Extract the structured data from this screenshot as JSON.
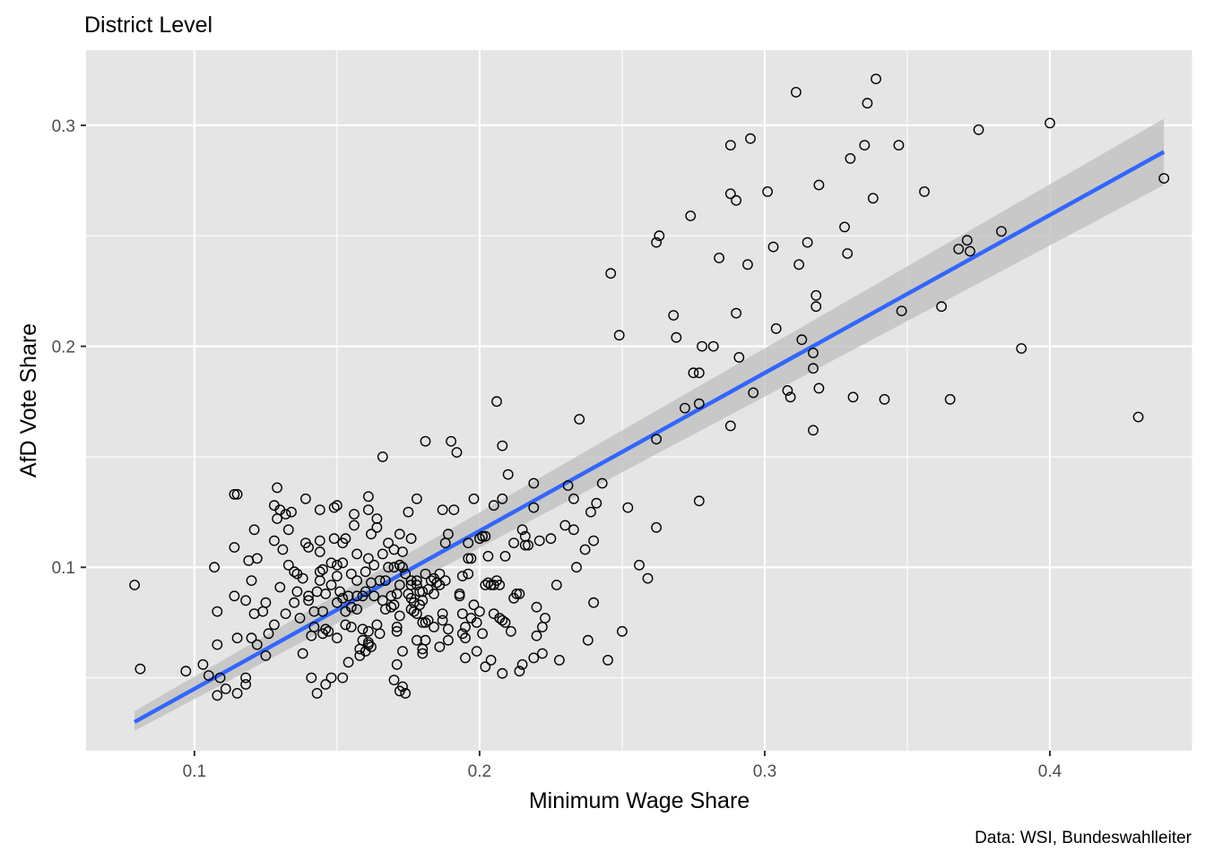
{
  "chart_data": {
    "type": "scatter",
    "title": "District Level",
    "xlabel": "Minimum Wage Share",
    "ylabel": "AfD Vote Share",
    "caption": "Data: WSI, Bundeswahlleiter",
    "xlim": [
      0.062,
      0.45
    ],
    "ylim": [
      0.017,
      0.334
    ],
    "x_ticks": [
      0.1,
      0.2,
      0.3,
      0.4
    ],
    "y_ticks": [
      0.1,
      0.2,
      0.3
    ],
    "x_tick_labels": [
      "0.1",
      "0.2",
      "0.3",
      "0.4"
    ],
    "y_tick_labels": [
      "0.1",
      "0.2",
      "0.3"
    ],
    "grid": true,
    "colors": {
      "panel_background": "#e5e5e5",
      "grid": "#ffffff",
      "fit_line": "#3366ff",
      "confidence_band": "#bebebe",
      "point_stroke": "#000000"
    },
    "fit_line": {
      "x": [
        0.079,
        0.44
      ],
      "y": [
        0.03,
        0.288
      ],
      "ci_lower": [
        0.026,
        0.273
      ],
      "ci_upper": [
        0.035,
        0.303
      ]
    },
    "points": [
      [
        0.079,
        0.092
      ],
      [
        0.081,
        0.054
      ],
      [
        0.097,
        0.053
      ],
      [
        0.103,
        0.056
      ],
      [
        0.105,
        0.051
      ],
      [
        0.108,
        0.042
      ],
      [
        0.108,
        0.08
      ],
      [
        0.108,
        0.065
      ],
      [
        0.107,
        0.1
      ],
      [
        0.109,
        0.05
      ],
      [
        0.111,
        0.045
      ],
      [
        0.114,
        0.133
      ],
      [
        0.115,
        0.133
      ],
      [
        0.114,
        0.109
      ],
      [
        0.114,
        0.087
      ],
      [
        0.115,
        0.068
      ],
      [
        0.115,
        0.043
      ],
      [
        0.118,
        0.05
      ],
      [
        0.118,
        0.047
      ],
      [
        0.118,
        0.085
      ],
      [
        0.119,
        0.103
      ],
      [
        0.12,
        0.094
      ],
      [
        0.12,
        0.068
      ],
      [
        0.121,
        0.117
      ],
      [
        0.121,
        0.079
      ],
      [
        0.122,
        0.104
      ],
      [
        0.122,
        0.065
      ],
      [
        0.124,
        0.08
      ],
      [
        0.125,
        0.084
      ],
      [
        0.125,
        0.06
      ],
      [
        0.126,
        0.07
      ],
      [
        0.128,
        0.128
      ],
      [
        0.128,
        0.112
      ],
      [
        0.128,
        0.074
      ],
      [
        0.129,
        0.136
      ],
      [
        0.129,
        0.122
      ],
      [
        0.13,
        0.126
      ],
      [
        0.13,
        0.091
      ],
      [
        0.131,
        0.108
      ],
      [
        0.132,
        0.124
      ],
      [
        0.132,
        0.079
      ],
      [
        0.133,
        0.117
      ],
      [
        0.133,
        0.101
      ],
      [
        0.134,
        0.125
      ],
      [
        0.135,
        0.098
      ],
      [
        0.135,
        0.084
      ],
      [
        0.136,
        0.089
      ],
      [
        0.136,
        0.097
      ],
      [
        0.137,
        0.077
      ],
      [
        0.138,
        0.061
      ],
      [
        0.138,
        0.095
      ],
      [
        0.139,
        0.111
      ],
      [
        0.139,
        0.131
      ],
      [
        0.14,
        0.085
      ],
      [
        0.14,
        0.087
      ],
      [
        0.14,
        0.109
      ],
      [
        0.141,
        0.069
      ],
      [
        0.141,
        0.05
      ],
      [
        0.142,
        0.08
      ],
      [
        0.142,
        0.073
      ],
      [
        0.143,
        0.043
      ],
      [
        0.143,
        0.089
      ],
      [
        0.144,
        0.126
      ],
      [
        0.144,
        0.094
      ],
      [
        0.144,
        0.098
      ],
      [
        0.144,
        0.107
      ],
      [
        0.144,
        0.112
      ],
      [
        0.145,
        0.099
      ],
      [
        0.145,
        0.07
      ],
      [
        0.145,
        0.08
      ],
      [
        0.146,
        0.088
      ],
      [
        0.146,
        0.047
      ],
      [
        0.146,
        0.072
      ],
      [
        0.147,
        0.071
      ],
      [
        0.148,
        0.05
      ],
      [
        0.148,
        0.102
      ],
      [
        0.148,
        0.092
      ],
      [
        0.149,
        0.127
      ],
      [
        0.149,
        0.113
      ],
      [
        0.15,
        0.128
      ],
      [
        0.15,
        0.101
      ],
      [
        0.15,
        0.096
      ],
      [
        0.15,
        0.084
      ],
      [
        0.15,
        0.068
      ],
      [
        0.151,
        0.089
      ],
      [
        0.152,
        0.086
      ],
      [
        0.152,
        0.102
      ],
      [
        0.152,
        0.111
      ],
      [
        0.152,
        0.05
      ],
      [
        0.153,
        0.113
      ],
      [
        0.153,
        0.08
      ],
      [
        0.153,
        0.074
      ],
      [
        0.154,
        0.057
      ],
      [
        0.154,
        0.087
      ],
      [
        0.155,
        0.097
      ],
      [
        0.155,
        0.082
      ],
      [
        0.155,
        0.073
      ],
      [
        0.156,
        0.119
      ],
      [
        0.156,
        0.124
      ],
      [
        0.157,
        0.094
      ],
      [
        0.157,
        0.087
      ],
      [
        0.157,
        0.106
      ],
      [
        0.157,
        0.081
      ],
      [
        0.158,
        0.06
      ],
      [
        0.158,
        0.063
      ],
      [
        0.159,
        0.072
      ],
      [
        0.159,
        0.067
      ],
      [
        0.159,
        0.087
      ],
      [
        0.16,
        0.098
      ],
      [
        0.16,
        0.089
      ],
      [
        0.16,
        0.062
      ],
      [
        0.161,
        0.132
      ],
      [
        0.161,
        0.126
      ],
      [
        0.161,
        0.104
      ],
      [
        0.161,
        0.071
      ],
      [
        0.161,
        0.065
      ],
      [
        0.161,
        0.066
      ],
      [
        0.162,
        0.115
      ],
      [
        0.162,
        0.093
      ],
      [
        0.162,
        0.064
      ],
      [
        0.163,
        0.087
      ],
      [
        0.163,
        0.101
      ],
      [
        0.164,
        0.118
      ],
      [
        0.164,
        0.122
      ],
      [
        0.164,
        0.074
      ],
      [
        0.165,
        0.07
      ],
      [
        0.165,
        0.094
      ],
      [
        0.166,
        0.15
      ],
      [
        0.166,
        0.085
      ],
      [
        0.166,
        0.106
      ],
      [
        0.167,
        0.081
      ],
      [
        0.167,
        0.094
      ],
      [
        0.168,
        0.1
      ],
      [
        0.168,
        0.111
      ],
      [
        0.169,
        0.087
      ],
      [
        0.169,
        0.082
      ],
      [
        0.17,
        0.083
      ],
      [
        0.17,
        0.108
      ],
      [
        0.17,
        0.1
      ],
      [
        0.17,
        0.049
      ],
      [
        0.171,
        0.073
      ],
      [
        0.171,
        0.071
      ],
      [
        0.171,
        0.088
      ],
      [
        0.171,
        0.056
      ],
      [
        0.172,
        0.092
      ],
      [
        0.172,
        0.078
      ],
      [
        0.172,
        0.101
      ],
      [
        0.172,
        0.044
      ],
      [
        0.172,
        0.115
      ],
      [
        0.173,
        0.1
      ],
      [
        0.173,
        0.107
      ],
      [
        0.173,
        0.046
      ],
      [
        0.173,
        0.062
      ],
      [
        0.174,
        0.043
      ],
      [
        0.174,
        0.097
      ],
      [
        0.175,
        0.125
      ],
      [
        0.175,
        0.088
      ],
      [
        0.176,
        0.094
      ],
      [
        0.176,
        0.081
      ],
      [
        0.176,
        0.086
      ],
      [
        0.176,
        0.092
      ],
      [
        0.176,
        0.113
      ],
      [
        0.177,
        0.08
      ],
      [
        0.177,
        0.084
      ],
      [
        0.178,
        0.131
      ],
      [
        0.178,
        0.067
      ],
      [
        0.178,
        0.079
      ],
      [
        0.178,
        0.092
      ],
      [
        0.178,
        0.094
      ],
      [
        0.179,
        0.083
      ],
      [
        0.179,
        0.089
      ],
      [
        0.18,
        0.063
      ],
      [
        0.18,
        0.061
      ],
      [
        0.18,
        0.075
      ],
      [
        0.18,
        0.085
      ],
      [
        0.18,
        0.089
      ],
      [
        0.181,
        0.097
      ],
      [
        0.181,
        0.075
      ],
      [
        0.181,
        0.067
      ],
      [
        0.181,
        0.157
      ],
      [
        0.182,
        0.09
      ],
      [
        0.182,
        0.076
      ],
      [
        0.183,
        0.094
      ],
      [
        0.184,
        0.073
      ],
      [
        0.184,
        0.088
      ],
      [
        0.184,
        0.095
      ],
      [
        0.185,
        0.093
      ],
      [
        0.186,
        0.097
      ],
      [
        0.186,
        0.064
      ],
      [
        0.186,
        0.092
      ],
      [
        0.187,
        0.126
      ],
      [
        0.187,
        0.079
      ],
      [
        0.187,
        0.076
      ],
      [
        0.188,
        0.111
      ],
      [
        0.188,
        0.094
      ],
      [
        0.189,
        0.115
      ],
      [
        0.189,
        0.067
      ],
      [
        0.189,
        0.072
      ],
      [
        0.19,
        0.157
      ],
      [
        0.191,
        0.126
      ],
      [
        0.192,
        0.152
      ],
      [
        0.193,
        0.088
      ],
      [
        0.193,
        0.087
      ],
      [
        0.194,
        0.096
      ],
      [
        0.194,
        0.079
      ],
      [
        0.194,
        0.07
      ],
      [
        0.195,
        0.073
      ],
      [
        0.195,
        0.068
      ],
      [
        0.195,
        0.059
      ],
      [
        0.196,
        0.104
      ],
      [
        0.196,
        0.111
      ],
      [
        0.196,
        0.097
      ],
      [
        0.197,
        0.104
      ],
      [
        0.197,
        0.077
      ],
      [
        0.198,
        0.083
      ],
      [
        0.198,
        0.131
      ],
      [
        0.199,
        0.062
      ],
      [
        0.199,
        0.075
      ],
      [
        0.2,
        0.113
      ],
      [
        0.2,
        0.08
      ],
      [
        0.201,
        0.114
      ],
      [
        0.201,
        0.07
      ],
      [
        0.202,
        0.114
      ],
      [
        0.202,
        0.092
      ],
      [
        0.202,
        0.055
      ],
      [
        0.203,
        0.093
      ],
      [
        0.203,
        0.105
      ],
      [
        0.204,
        0.092
      ],
      [
        0.204,
        0.058
      ],
      [
        0.205,
        0.092
      ],
      [
        0.205,
        0.079
      ],
      [
        0.205,
        0.128
      ],
      [
        0.206,
        0.175
      ],
      [
        0.206,
        0.094
      ],
      [
        0.207,
        0.092
      ],
      [
        0.207,
        0.077
      ],
      [
        0.208,
        0.131
      ],
      [
        0.208,
        0.076
      ],
      [
        0.208,
        0.052
      ],
      [
        0.208,
        0.155
      ],
      [
        0.209,
        0.105
      ],
      [
        0.209,
        0.075
      ],
      [
        0.21,
        0.142
      ],
      [
        0.211,
        0.071
      ],
      [
        0.212,
        0.086
      ],
      [
        0.212,
        0.111
      ],
      [
        0.213,
        0.088
      ],
      [
        0.214,
        0.053
      ],
      [
        0.214,
        0.088
      ],
      [
        0.215,
        0.056
      ],
      [
        0.215,
        0.117
      ],
      [
        0.216,
        0.114
      ],
      [
        0.216,
        0.11
      ],
      [
        0.217,
        0.11
      ],
      [
        0.219,
        0.059
      ],
      [
        0.219,
        0.138
      ],
      [
        0.219,
        0.127
      ],
      [
        0.22,
        0.082
      ],
      [
        0.22,
        0.069
      ],
      [
        0.221,
        0.112
      ],
      [
        0.222,
        0.061
      ],
      [
        0.222,
        0.073
      ],
      [
        0.223,
        0.077
      ],
      [
        0.225,
        0.113
      ],
      [
        0.227,
        0.092
      ],
      [
        0.228,
        0.058
      ],
      [
        0.23,
        0.119
      ],
      [
        0.231,
        0.137
      ],
      [
        0.233,
        0.117
      ],
      [
        0.233,
        0.131
      ],
      [
        0.234,
        0.1
      ],
      [
        0.235,
        0.167
      ],
      [
        0.237,
        0.108
      ],
      [
        0.238,
        0.067
      ],
      [
        0.239,
        0.125
      ],
      [
        0.24,
        0.084
      ],
      [
        0.24,
        0.112
      ],
      [
        0.241,
        0.129
      ],
      [
        0.243,
        0.138
      ],
      [
        0.245,
        0.058
      ],
      [
        0.246,
        0.233
      ],
      [
        0.249,
        0.205
      ],
      [
        0.25,
        0.071
      ],
      [
        0.252,
        0.127
      ],
      [
        0.256,
        0.101
      ],
      [
        0.259,
        0.095
      ],
      [
        0.262,
        0.247
      ],
      [
        0.262,
        0.158
      ],
      [
        0.262,
        0.118
      ],
      [
        0.263,
        0.25
      ],
      [
        0.268,
        0.214
      ],
      [
        0.269,
        0.204
      ],
      [
        0.272,
        0.172
      ],
      [
        0.274,
        0.259
      ],
      [
        0.275,
        0.188
      ],
      [
        0.277,
        0.188
      ],
      [
        0.277,
        0.13
      ],
      [
        0.277,
        0.174
      ],
      [
        0.278,
        0.2
      ],
      [
        0.282,
        0.2
      ],
      [
        0.284,
        0.24
      ],
      [
        0.288,
        0.291
      ],
      [
        0.288,
        0.269
      ],
      [
        0.288,
        0.164
      ],
      [
        0.29,
        0.266
      ],
      [
        0.29,
        0.215
      ],
      [
        0.291,
        0.195
      ],
      [
        0.294,
        0.237
      ],
      [
        0.295,
        0.294
      ],
      [
        0.296,
        0.179
      ],
      [
        0.301,
        0.27
      ],
      [
        0.303,
        0.245
      ],
      [
        0.304,
        0.208
      ],
      [
        0.308,
        0.18
      ],
      [
        0.309,
        0.177
      ],
      [
        0.311,
        0.315
      ],
      [
        0.312,
        0.237
      ],
      [
        0.313,
        0.203
      ],
      [
        0.315,
        0.247
      ],
      [
        0.317,
        0.19
      ],
      [
        0.317,
        0.162
      ],
      [
        0.317,
        0.197
      ],
      [
        0.318,
        0.223
      ],
      [
        0.318,
        0.218
      ],
      [
        0.319,
        0.273
      ],
      [
        0.319,
        0.181
      ],
      [
        0.328,
        0.254
      ],
      [
        0.329,
        0.242
      ],
      [
        0.33,
        0.285
      ],
      [
        0.331,
        0.177
      ],
      [
        0.335,
        0.291
      ],
      [
        0.336,
        0.31
      ],
      [
        0.338,
        0.267
      ],
      [
        0.339,
        0.321
      ],
      [
        0.342,
        0.176
      ],
      [
        0.347,
        0.291
      ],
      [
        0.348,
        0.216
      ],
      [
        0.356,
        0.27
      ],
      [
        0.362,
        0.218
      ],
      [
        0.365,
        0.176
      ],
      [
        0.368,
        0.244
      ],
      [
        0.371,
        0.248
      ],
      [
        0.372,
        0.243
      ],
      [
        0.375,
        0.298
      ],
      [
        0.383,
        0.252
      ],
      [
        0.39,
        0.199
      ],
      [
        0.4,
        0.301
      ],
      [
        0.431,
        0.168
      ],
      [
        0.44,
        0.276
      ]
    ]
  }
}
